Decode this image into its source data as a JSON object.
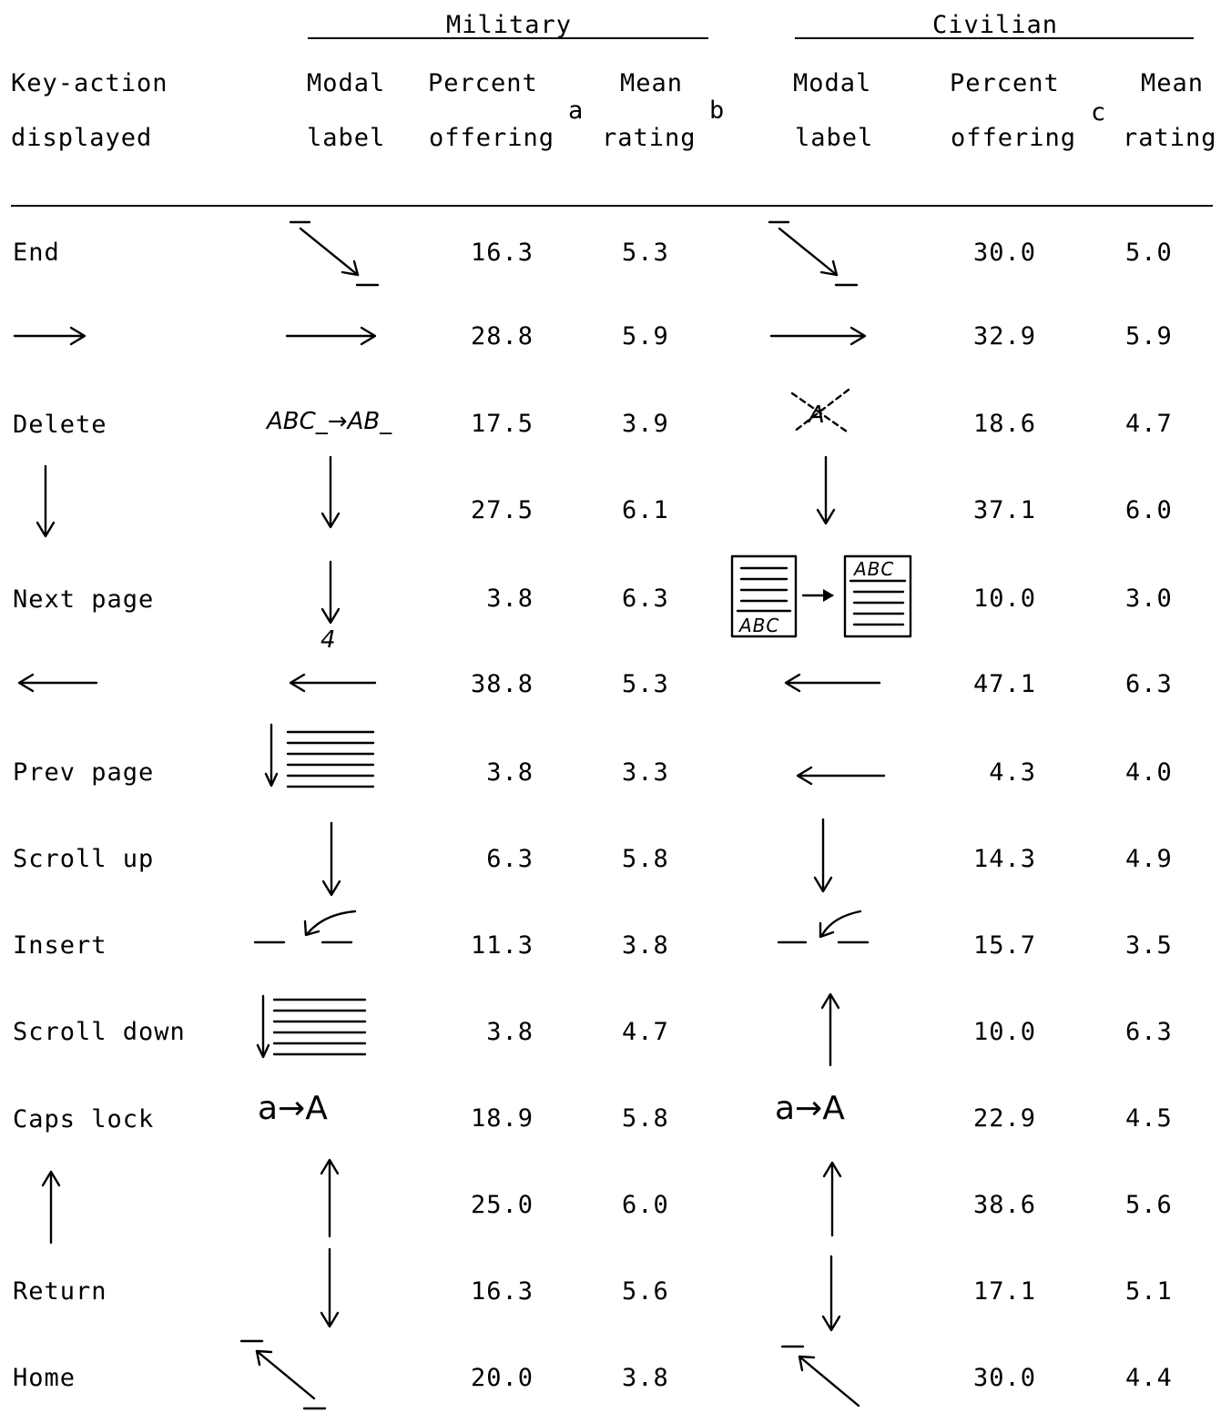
{
  "header": {
    "group_military": "Military",
    "group_civilian": "Civilian",
    "col_key_action_1": "Key-action",
    "col_key_action_2": "displayed",
    "col_modal_1": "Modal",
    "col_modal_2": "label",
    "col_percent_1": "Percent",
    "col_percent_2": "offering",
    "col_mean_1": "Mean",
    "col_mean_2": "rating",
    "sup_a": "a",
    "sup_b": "b",
    "sup_c": "c"
  },
  "rows": [
    {
      "action": "End",
      "action_icon": "",
      "mil_label_icon": "diagonal-arrow-down-right-bars",
      "mil_percent": "16.3",
      "mil_mean": "5.3",
      "civ_label_icon": "diagonal-arrow-down-right-bars",
      "civ_percent": "30.0",
      "civ_mean": "5.0"
    },
    {
      "action": "",
      "action_icon": "right-arrow",
      "mil_label_icon": "right-arrow",
      "mil_percent": "28.8",
      "mil_mean": "5.9",
      "civ_label_icon": "right-arrow",
      "civ_percent": "32.9",
      "civ_mean": "5.9"
    },
    {
      "action": "Delete",
      "action_icon": "",
      "mil_label_icon": "abc-to-ab-text",
      "mil_label_text": "ABC_→AB_",
      "mil_percent": "17.5",
      "mil_mean": "3.9",
      "civ_label_icon": "crossed-out-a",
      "civ_label_text": "A",
      "civ_percent": "18.6",
      "civ_mean": "4.7"
    },
    {
      "action": "",
      "action_icon": "down-arrow",
      "mil_label_icon": "down-arrow",
      "mil_percent": "27.5",
      "mil_mean": "6.1",
      "civ_label_icon": "down-arrow",
      "civ_percent": "37.1",
      "civ_mean": "6.0"
    },
    {
      "action": "Next page",
      "action_icon": "",
      "mil_label_icon": "down-arrow-with-4",
      "mil_label_text": "4",
      "mil_percent": "3.8",
      "mil_mean": "6.3",
      "civ_label_icon": "page-to-page",
      "civ_label_text": "ABC",
      "civ_percent": "10.0",
      "civ_mean": "3.0"
    },
    {
      "action": "",
      "action_icon": "left-arrow",
      "mil_label_icon": "left-arrow",
      "mil_percent": "38.8",
      "mil_mean": "5.3",
      "civ_label_icon": "left-arrow",
      "civ_percent": "47.1",
      "civ_mean": "6.3"
    },
    {
      "action": "Prev page",
      "action_icon": "",
      "mil_label_icon": "down-arrow-lines",
      "mil_percent": "3.8",
      "mil_mean": "3.3",
      "civ_label_icon": "left-arrow",
      "civ_percent": "4.3",
      "civ_mean": "4.0"
    },
    {
      "action": "Scroll up",
      "action_icon": "",
      "mil_label_icon": "down-arrow",
      "mil_percent": "6.3",
      "mil_mean": "5.8",
      "civ_label_icon": "down-arrow",
      "civ_percent": "14.3",
      "civ_mean": "4.9"
    },
    {
      "action": "Insert",
      "action_icon": "",
      "mil_label_icon": "insert-curve-arrow",
      "mil_percent": "11.3",
      "mil_mean": "3.8",
      "civ_label_icon": "insert-curve-arrow",
      "civ_percent": "15.7",
      "civ_mean": "3.5"
    },
    {
      "action": "Scroll down",
      "action_icon": "",
      "mil_label_icon": "down-arrow-lines",
      "mil_percent": "3.8",
      "mil_mean": "4.7",
      "civ_label_icon": "up-arrow",
      "civ_percent": "10.0",
      "civ_mean": "6.3"
    },
    {
      "action": "Caps lock",
      "action_icon": "",
      "mil_label_icon": "a-to-A-text",
      "mil_label_text": "a→A",
      "mil_percent": "18.9",
      "mil_mean": "5.8",
      "civ_label_icon": "a-to-A-text",
      "civ_label_text": "a→A",
      "civ_percent": "22.9",
      "civ_mean": "4.5"
    },
    {
      "action": "",
      "action_icon": "up-arrow",
      "mil_label_icon": "up-arrow",
      "mil_percent": "25.0",
      "mil_mean": "6.0",
      "civ_label_icon": "up-arrow",
      "civ_percent": "38.6",
      "civ_mean": "5.6"
    },
    {
      "action": "Return",
      "action_icon": "",
      "mil_label_icon": "down-arrow",
      "mil_percent": "16.3",
      "mil_mean": "5.6",
      "civ_label_icon": "down-arrow",
      "civ_percent": "17.1",
      "civ_mean": "5.1"
    },
    {
      "action": "Home",
      "action_icon": "",
      "mil_label_icon": "diagonal-arrow-up-left-bars",
      "mil_percent": "20.0",
      "mil_mean": "3.8",
      "civ_label_icon": "diagonal-arrow-up-left-bar",
      "civ_percent": "30.0",
      "civ_mean": "4.4"
    }
  ]
}
